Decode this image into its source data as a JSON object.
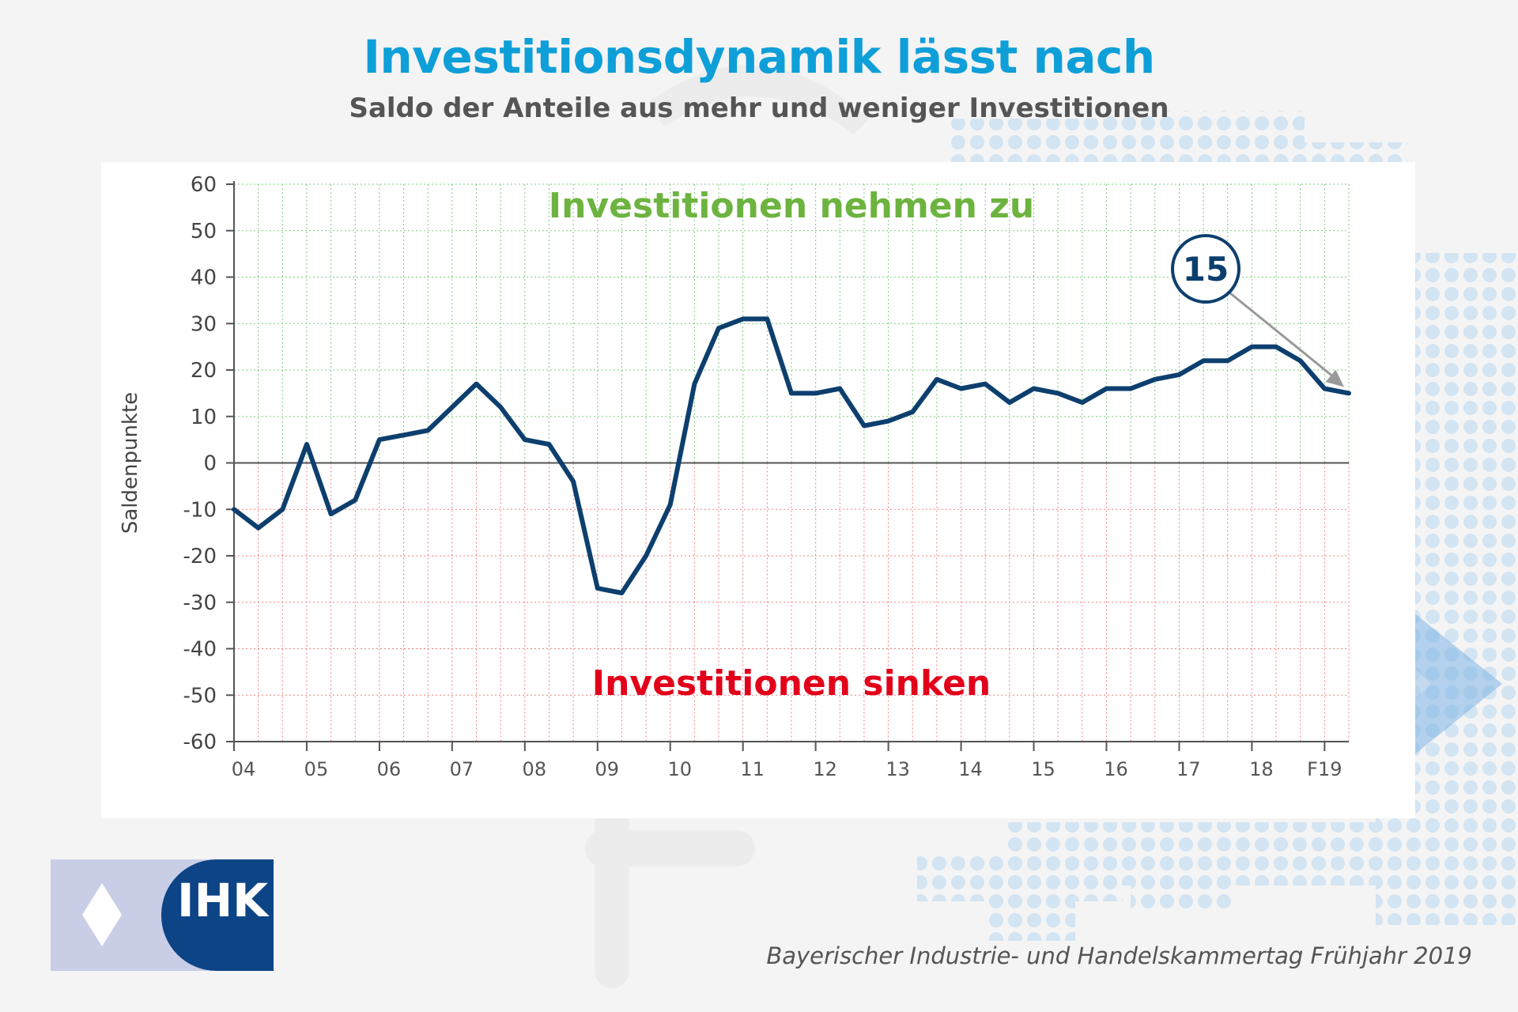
{
  "header": {
    "title": "Investitionsdynamik lässt nach",
    "subtitle": "Saldo der Anteile aus mehr und weniger Investitionen"
  },
  "chart_data": {
    "type": "line",
    "title": "Investitionsdynamik lässt nach",
    "subtitle": "Saldo der Anteile aus mehr und weniger Investitionen",
    "ylabel": "Saldenpunkte",
    "xlabel": "",
    "ylim": [
      -60,
      60
    ],
    "yticks": [
      60,
      50,
      40,
      30,
      20,
      10,
      0,
      -10,
      -20,
      -30,
      -40,
      -50,
      -60
    ],
    "xtick_labels": [
      "04",
      "05",
      "06",
      "07",
      "08",
      "09",
      "10",
      "11",
      "12",
      "13",
      "14",
      "15",
      "16",
      "17",
      "18",
      "F19"
    ],
    "grid": true,
    "annotations": {
      "positive_region": "Investitionen nehmen zu",
      "negative_region": "Investitionen sinken",
      "last_value_callout": "15"
    },
    "series": [
      {
        "values": [
          -10,
          -14,
          -10,
          4,
          -11,
          -8,
          5,
          6,
          7,
          12,
          17,
          12,
          5,
          4,
          -4,
          -27,
          -28,
          -20,
          -9,
          17,
          29,
          31,
          31,
          15,
          15,
          16,
          8,
          9,
          11,
          18,
          16,
          17,
          13,
          16,
          15,
          13,
          16,
          16,
          18,
          19,
          22,
          22,
          25,
          25,
          22,
          16,
          15
        ]
      }
    ]
  },
  "colors": {
    "title": "#0f9fd8",
    "subtitle": "#555555",
    "line": "#0d3f6e",
    "positive_text": "#6db33f",
    "negative_text": "#e2001a",
    "grid_positive": "#7fc97f",
    "grid_negative": "#f08080",
    "logo_dark": "#0d4486",
    "logo_light": "#c9cee6"
  },
  "logo": {
    "text": "IHK"
  },
  "footer": {
    "source": "Bayerischer Industrie- und Handelskammertag Frühjahr 2019"
  }
}
